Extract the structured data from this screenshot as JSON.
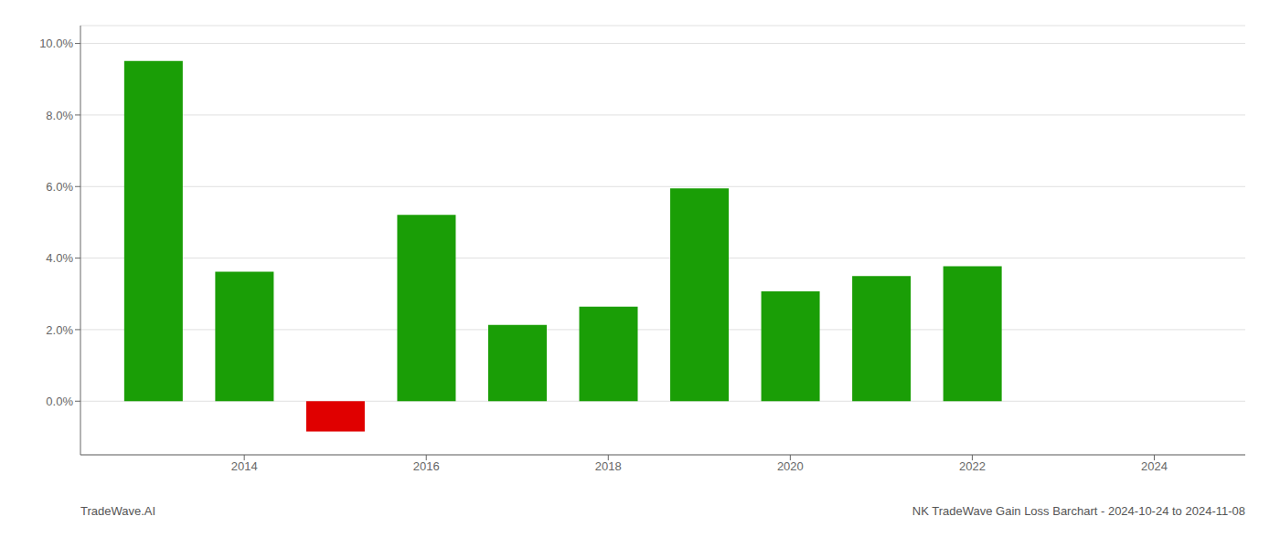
{
  "chart_data": {
    "type": "bar",
    "x": [
      2013,
      2014,
      2015,
      2016,
      2017,
      2018,
      2019,
      2020,
      2021,
      2022,
      2023
    ],
    "values": [
      0.0951,
      0.0362,
      -0.0085,
      0.0521,
      0.0213,
      0.0264,
      0.0595,
      0.0307,
      0.035,
      0.0377,
      0.0
    ],
    "colors": [
      "#1a9e06",
      "#1a9e06",
      "#e00000",
      "#1a9e06",
      "#1a9e06",
      "#1a9e06",
      "#1a9e06",
      "#1a9e06",
      "#1a9e06",
      "#1a9e06",
      "#1a9e06"
    ],
    "xlim": [
      2012.2,
      2025.0
    ],
    "xticks": [
      2014,
      2016,
      2018,
      2020,
      2022,
      2024
    ],
    "ylim": [
      -0.015,
      0.105
    ],
    "yticks": [
      {
        "value": 0.0,
        "label": "0.0%"
      },
      {
        "value": 0.02,
        "label": "2.0%"
      },
      {
        "value": 0.04,
        "label": "4.0%"
      },
      {
        "value": 0.06,
        "label": "6.0%"
      },
      {
        "value": 0.08,
        "label": "8.0%"
      },
      {
        "value": 0.1,
        "label": "10.0%"
      }
    ],
    "grid": true,
    "annotations": [
      "TradeWave.AI",
      "NK TradeWave Gain Loss Barchart - 2024-10-24 to 2024-11-08"
    ]
  }
}
